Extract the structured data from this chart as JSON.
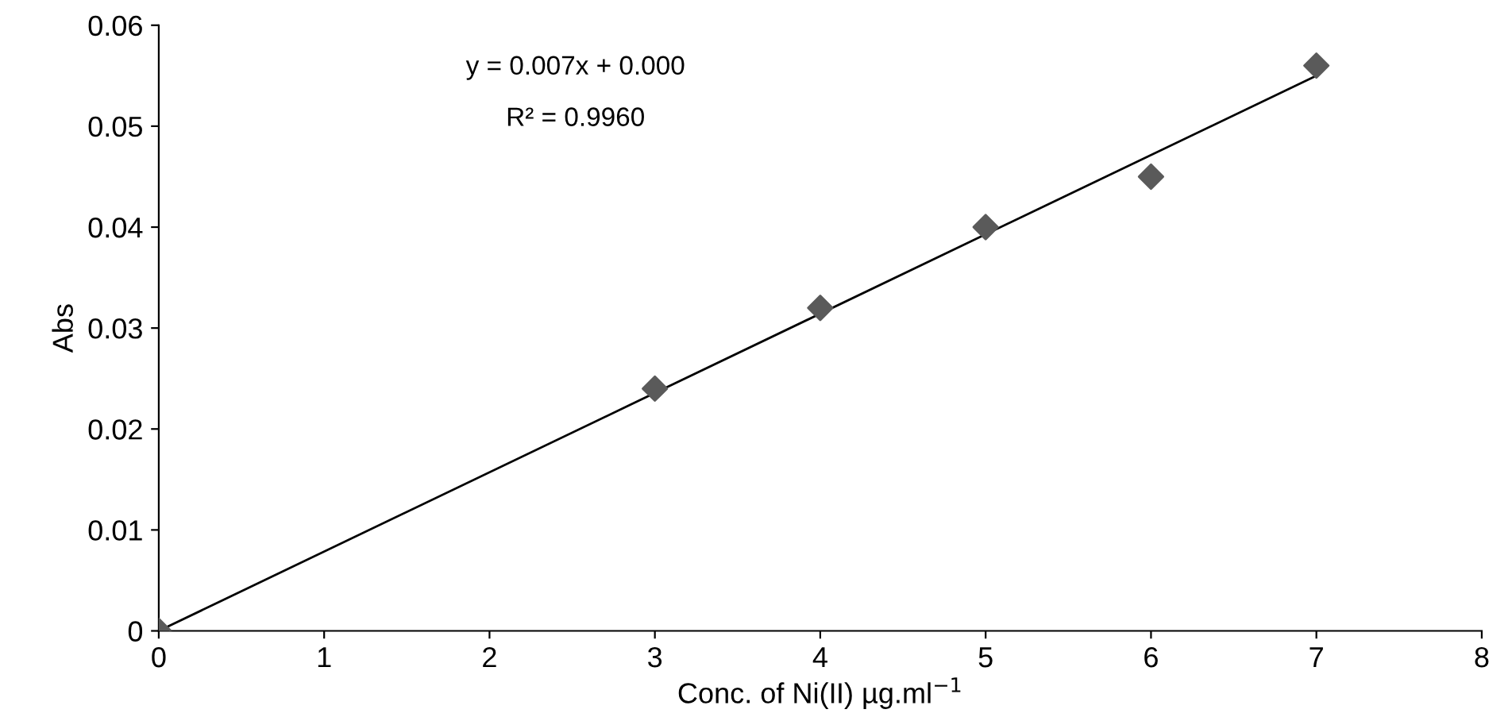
{
  "chart_data": {
    "type": "scatter",
    "xlabel": "Conc. of Ni(II) µg.ml$^{−1}$",
    "ylabel": "Abs",
    "x": [
      0,
      3,
      4,
      5,
      6,
      7
    ],
    "series": [
      {
        "color": "#5a5a5a",
        "marker": "diamond",
        "values": [
          0,
          0.024,
          0.032,
          0.04,
          0.045,
          0.056
        ]
      },
      {
        "type": "line",
        "color": "#000000",
        "line_style": "solid",
        "x": [
          0,
          7
        ],
        "values": [
          0,
          0.055
        ]
      }
    ],
    "annotations": [
      "y = 0.007x + 0.000",
      "R² = 0.9960"
    ],
    "xlim": [
      0,
      8
    ],
    "xticks": [
      0,
      1,
      2,
      3,
      4,
      5,
      6,
      7,
      8
    ],
    "ylim": [
      0,
      0.06
    ],
    "yticks": [
      0,
      0.01,
      0.02,
      0.03,
      0.04,
      0.05,
      0.06
    ],
    "grid": false,
    "legend": false
  }
}
